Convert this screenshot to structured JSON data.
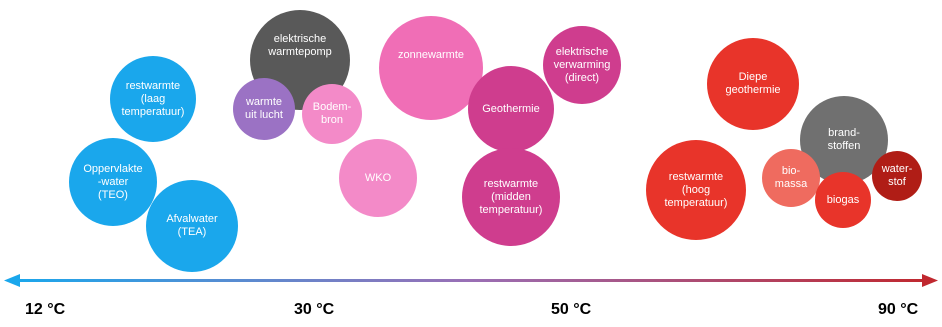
{
  "colors": {
    "blue": "#1aa7ec",
    "dark_gray": "#595959",
    "purple": "#9b72c4",
    "light_pink": "#f38ac8",
    "pink": "#f06eb6",
    "magenta": "#cf3d8e",
    "red": "#e8342a",
    "salmon": "#ef6b5f",
    "dark_red": "#b01d16",
    "gray": "#707070",
    "axis_start": "#1aa7ec",
    "axis_end": "#c0282f"
  },
  "bubbles": [
    {
      "id": "restwarmte-laag",
      "label": "restwarmte\n(laag\ntemperatuur)",
      "color": "blue"
    },
    {
      "id": "oppervlaktewater",
      "label": "Oppervlakte\n-water\n(TEO)",
      "color": "blue"
    },
    {
      "id": "afvalwater",
      "label": "Afvalwater\n(TEA)",
      "color": "blue"
    },
    {
      "id": "elektrische-warmtepomp",
      "label": "elektrische\nwarmtepomp",
      "color": "dark_gray"
    },
    {
      "id": "warmte-uit-lucht",
      "label": "warmte\nuit lucht",
      "color": "purple"
    },
    {
      "id": "bodembron",
      "label": "Bodem-\nbron",
      "color": "light_pink"
    },
    {
      "id": "wko",
      "label": "WKO",
      "color": "light_pink"
    },
    {
      "id": "zonnewarmte",
      "label": "zonnewarmte",
      "color": "pink"
    },
    {
      "id": "elektrische-verwarming",
      "label": "elektrische\nverwarming\n(direct)",
      "color": "magenta"
    },
    {
      "id": "geothermie",
      "label": "Geothermie",
      "color": "magenta"
    },
    {
      "id": "restwarmte-midden",
      "label": "restwarmte\n(midden\ntemperatuur)",
      "color": "magenta"
    },
    {
      "id": "diepe-geothermie",
      "label": "Diepe\ngeothermie",
      "color": "red"
    },
    {
      "id": "restwarmte-hoog",
      "label": "restwarmte\n(hoog\ntemperatuur)",
      "color": "red"
    },
    {
      "id": "brandstoffen",
      "label": "brand-\nstoffen",
      "color": "gray"
    },
    {
      "id": "biomassa",
      "label": "bio-\nmassa",
      "color": "salmon"
    },
    {
      "id": "biogas",
      "label": "biogas",
      "color": "red"
    },
    {
      "id": "waterstof",
      "label": "water-\nstof",
      "color": "dark_red"
    }
  ],
  "axis": {
    "labels": [
      "12 °C",
      "30 °C",
      "50 °C",
      "90 °C"
    ]
  }
}
